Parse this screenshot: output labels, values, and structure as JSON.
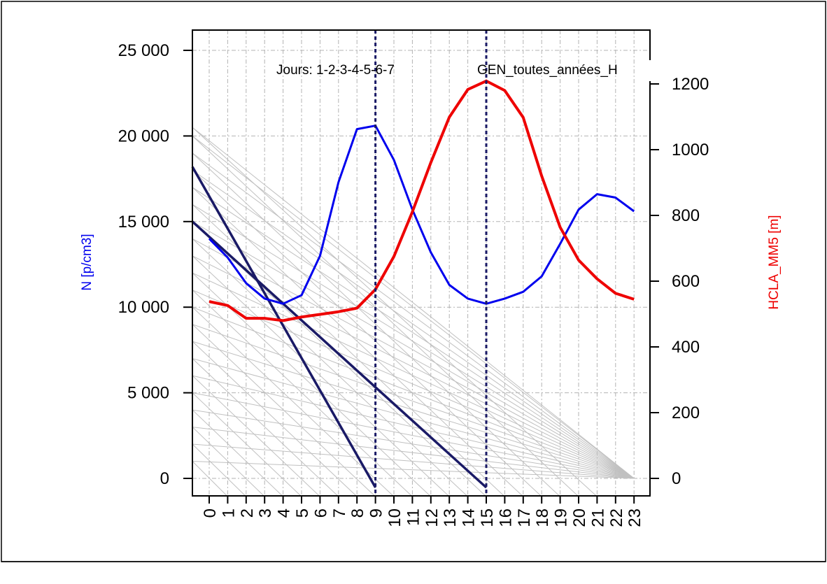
{
  "annotations": {
    "days": "Jours:  1-2-3-4-5-6-7",
    "dataset": "GEN_toutes_années_H"
  },
  "colors": {
    "left_series": "#0000ee",
    "right_series": "#ee0000",
    "reference": "#1a1a66",
    "grid": "#b3b3b3"
  },
  "chart_data": {
    "type": "line",
    "grid": true,
    "categories": [
      "0",
      "1",
      "2",
      "3",
      "4",
      "5",
      "6",
      "7",
      "8",
      "9",
      "10",
      "11",
      "12",
      "13",
      "14",
      "15",
      "16",
      "17",
      "18",
      "19",
      "20",
      "21",
      "22",
      "23"
    ],
    "y_left": {
      "label": "N [p/cm3]",
      "ylim": [
        0,
        25000
      ],
      "ticks": [
        0,
        5000,
        10000,
        15000,
        20000,
        25000
      ],
      "tick_labels": [
        "0",
        "5 000",
        "10 000",
        "15 000",
        "20 000",
        "25 000"
      ]
    },
    "y_right": {
      "label": "HCLA_MM5 [m]",
      "ylim": [
        0,
        1200
      ],
      "ticks": [
        0,
        200,
        400,
        600,
        800,
        1000,
        1200
      ],
      "tick_labels": [
        "0",
        "200",
        "400",
        "600",
        "800",
        "1000",
        "1200"
      ]
    },
    "series": [
      {
        "name": "N [p/cm3]",
        "axis": "left",
        "values": [
          14000,
          12900,
          11400,
          10500,
          10200,
          10700,
          13000,
          17300,
          20400,
          20600,
          18600,
          15700,
          13200,
          11300,
          10500,
          10200,
          10500,
          10900,
          11800,
          13700,
          15700,
          16600,
          16400,
          15600
        ]
      },
      {
        "name": "HCLA_MM5 [m]",
        "axis": "right",
        "values": [
          538,
          526,
          487,
          487,
          480,
          491,
          499,
          507,
          518,
          575,
          675,
          811,
          961,
          1099,
          1183,
          1209,
          1180,
          1098,
          920,
          764,
          664,
          607,
          563,
          545
        ]
      }
    ],
    "reference_lines": [
      {
        "from": [
          0,
          18200
        ],
        "to": [
          9,
          0
        ]
      },
      {
        "from": [
          0,
          15000
        ],
        "to": [
          15,
          0
        ]
      }
    ],
    "vertical_markers": [
      9,
      15
    ],
    "background_lines": {
      "from_y_left": [
        1000,
        2000,
        3000,
        4000,
        5000,
        6000,
        7000,
        8000,
        9000,
        10000,
        11000,
        12000,
        13000,
        14000,
        15000,
        16000,
        17000,
        18000,
        19000,
        20000,
        20500
      ],
      "to_x": [
        23,
        23,
        23,
        23,
        23,
        23,
        23,
        23,
        23,
        23,
        23,
        23,
        23,
        23,
        23,
        23,
        23,
        23,
        23,
        23,
        23
      ]
    }
  }
}
